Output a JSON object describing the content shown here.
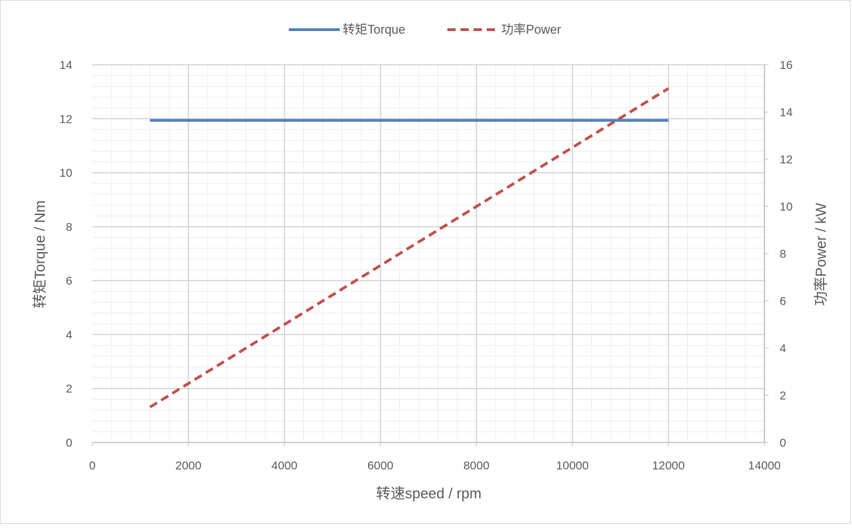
{
  "chart_data": {
    "type": "line",
    "title": "",
    "xlabel": "转速speed / rpm",
    "ylabel": "转矩Torque / Nm",
    "y2label": "功率Power / kW",
    "xlim": [
      0,
      14000
    ],
    "ylim": [
      0,
      14
    ],
    "y2lim": [
      0,
      16
    ],
    "xticks": [
      "0",
      "2000",
      "4000",
      "6000",
      "8000",
      "10000",
      "12000",
      "14000"
    ],
    "yticks": [
      "0",
      "2",
      "4",
      "6",
      "8",
      "10",
      "12",
      "14"
    ],
    "y2ticks": [
      "0",
      "2",
      "4",
      "6",
      "8",
      "10",
      "12",
      "14",
      "16"
    ],
    "grid": true,
    "legend_position": "top",
    "series": [
      {
        "name": "转矩Torque",
        "axis": "left",
        "color": "#4f81bd",
        "style": "solid",
        "x": [
          1200,
          12000
        ],
        "y": [
          11.94,
          11.94
        ]
      },
      {
        "name": "功率Power",
        "axis": "right",
        "color": "#c0504d",
        "style": "dashed",
        "x": [
          1200,
          12000
        ],
        "y": [
          1.5,
          15.0
        ]
      }
    ]
  }
}
